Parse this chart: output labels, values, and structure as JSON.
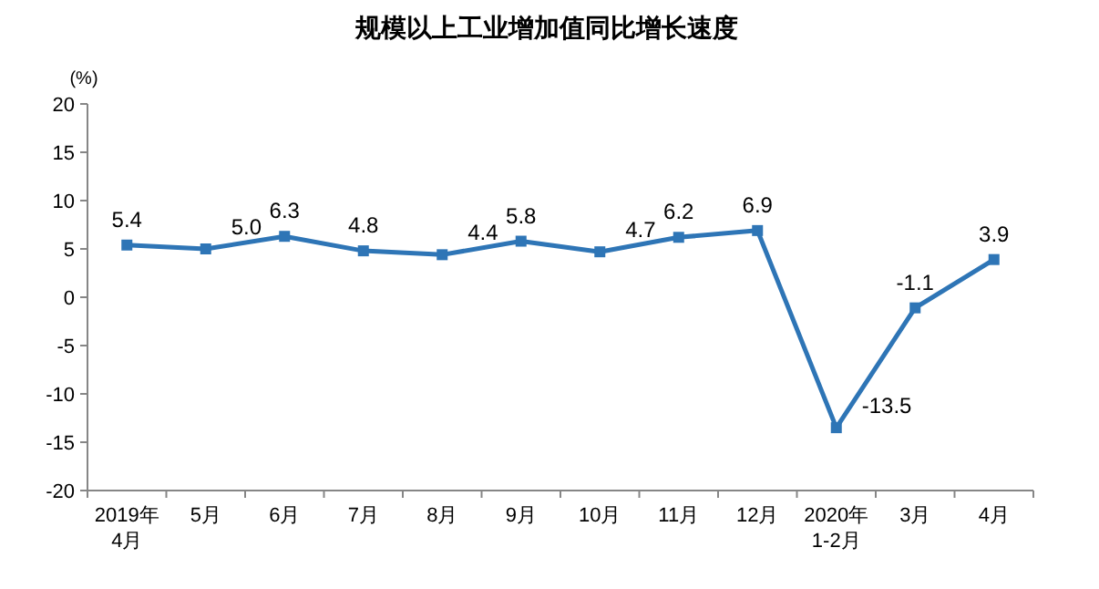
{
  "chart_data": {
    "type": "line",
    "title": "规模以上工业增加值同比增长速度",
    "ylabel": "(%)",
    "categories": [
      "2019年\n4月",
      "5月",
      "6月",
      "7月",
      "8月",
      "9月",
      "10月",
      "11月",
      "12月",
      "2020年\n1-2月",
      "3月",
      "4月"
    ],
    "series": [
      {
        "color": "#2e75b6",
        "values": [
          5.4,
          5.0,
          6.3,
          4.8,
          4.4,
          5.8,
          4.7,
          6.2,
          6.9,
          -13.5,
          -1.1,
          3.9
        ]
      }
    ],
    "ylim": [
      -20,
      20
    ],
    "yticks": [
      -20,
      -15,
      -10,
      -5,
      0,
      5,
      10,
      15,
      20
    ],
    "value_labels": [
      "5.4",
      "5.0",
      "6.3",
      "4.8",
      "4.4",
      "5.8",
      "4.7",
      "6.2",
      "6.9",
      "-13.5",
      "-1.1",
      "3.9"
    ],
    "marker": "square",
    "line_style": "solid",
    "grid": false
  }
}
